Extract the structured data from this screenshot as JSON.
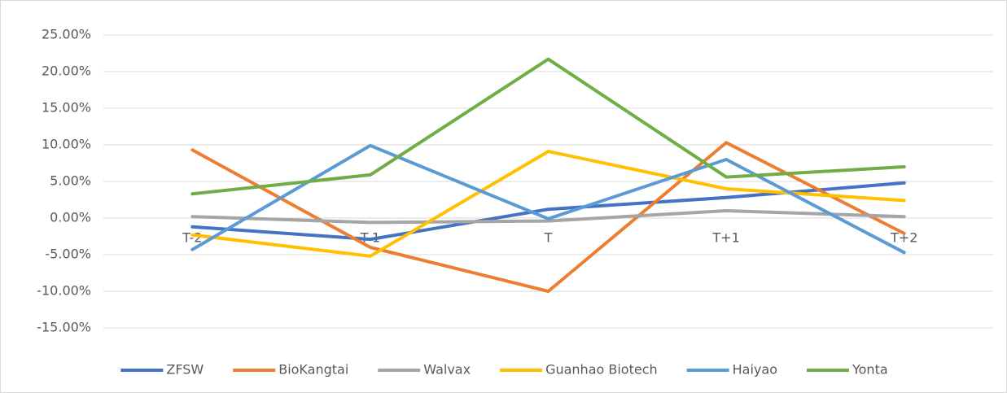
{
  "chart_data": {
    "type": "line",
    "categories": [
      "T-2",
      "T-1",
      "T",
      "T+1",
      "T+2"
    ],
    "series": [
      {
        "name": "ZFSW",
        "color": "#4472c4",
        "values": [
          -1.2,
          -2.9,
          1.2,
          2.8,
          4.8
        ]
      },
      {
        "name": "BioKangtai",
        "color": "#ed7d31",
        "values": [
          9.3,
          -4.0,
          -10.0,
          10.3,
          -2.1
        ]
      },
      {
        "name": "Walvax",
        "color": "#a5a5a5",
        "values": [
          0.2,
          -0.6,
          -0.4,
          1.0,
          0.2
        ]
      },
      {
        "name": "Guanhao Biotech",
        "color": "#ffc000",
        "values": [
          -2.3,
          -5.2,
          9.1,
          4.0,
          2.4
        ]
      },
      {
        "name": "Haiyao",
        "color": "#5b9bd5",
        "values": [
          -4.3,
          9.9,
          -0.1,
          8.0,
          -4.7
        ]
      },
      {
        "name": "Yonta",
        "color": "#70ad47",
        "values": [
          3.3,
          5.9,
          21.7,
          5.6,
          7.0
        ]
      }
    ],
    "ylim": [
      -15,
      25
    ],
    "yticks": [
      {
        "value": -15,
        "label": "-15.00%"
      },
      {
        "value": -10,
        "label": "-10.00%"
      },
      {
        "value": -5,
        "label": "-5.00%"
      },
      {
        "value": 0,
        "label": "0.00%"
      },
      {
        "value": 5,
        "label": "5.00%"
      },
      {
        "value": 10,
        "label": "10.00%"
      },
      {
        "value": 15,
        "label": "15.00%"
      },
      {
        "value": 20,
        "label": "20.00%"
      },
      {
        "value": 25,
        "label": "25.00%"
      }
    ],
    "grid": true,
    "legend": "bottom"
  }
}
